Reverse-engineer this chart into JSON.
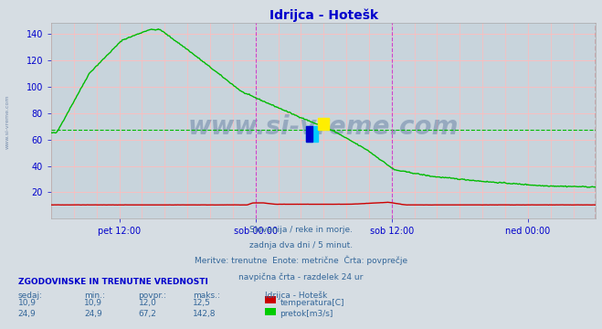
{
  "title": "Idrijca - Hotešk",
  "bg_color": "#d6dde3",
  "plot_bg_color": "#c8d4dc",
  "title_color": "#0000cc",
  "ylabel_color": "#0000cc",
  "xlabel_color": "#0000cc",
  "grid_h_color": "#ffbbbb",
  "grid_v_color": "#ffbbbb",
  "vline_day_color": "#cc44cc",
  "vline_right_color": "#cc0000",
  "avg_flow": 67.2,
  "flow_color": "#00bb00",
  "temp_color": "#cc0000",
  "ylim": [
    0,
    148
  ],
  "yticks": [
    20,
    40,
    60,
    80,
    100,
    120,
    140
  ],
  "x_ticks_labels": [
    "pet 12:00",
    "sob 00:00",
    "sob 12:00",
    "ned 00:00"
  ],
  "x_ticks_pos": [
    0.125,
    0.375,
    0.625,
    0.875
  ],
  "watermark": "www.si-vreme.com",
  "watermark_side": "www.si-vreme.com",
  "subtitle_lines": [
    "Slovenija / reke in morje.",
    "zadnja dva dni / 5 minut.",
    "Meritve: trenutne  Enote: metrične  Črta: povprečje",
    "navpična črta - razdelek 24 ur"
  ],
  "subtitle_color": "#336699",
  "table_header": "ZGODOVINSKE IN TRENUTNE VREDNOSTI",
  "table_header_color": "#0000cc",
  "table_col_headers": [
    "sedaj:",
    "min.:",
    "povpr.:",
    "maks.:"
  ],
  "table_col_color": "#336699",
  "table_rows": [
    {
      "values": [
        "10,9",
        "10,9",
        "12,0",
        "12,5"
      ],
      "label": "temperatura[C]",
      "color": "#cc0000"
    },
    {
      "values": [
        "24,9",
        "24,9",
        "67,2",
        "142,8"
      ],
      "label": "pretok[m3/s]",
      "color": "#00cc00"
    }
  ],
  "table_station": "Idrijca - Hotešk",
  "table_station_color": "#336699",
  "table_value_color": "#336699"
}
